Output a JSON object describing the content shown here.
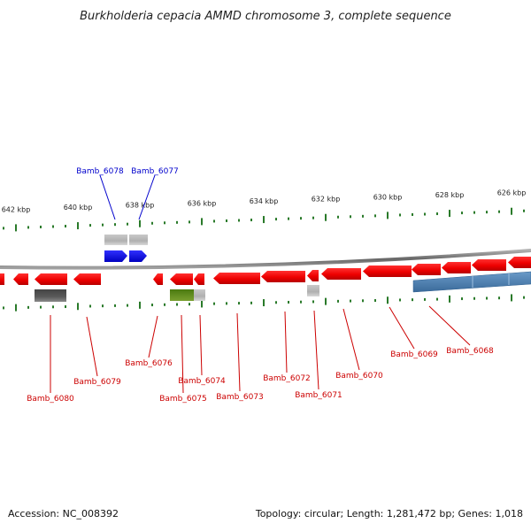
{
  "title": "Burkholderia cepacia AMMD chromosome 3, complete sequence",
  "ruler_ticks": [
    {
      "label": "642 kbp"
    },
    {
      "label": "640 kbp"
    },
    {
      "label": "638 kbp"
    },
    {
      "label": "636 kbp"
    },
    {
      "label": "634 kbp"
    },
    {
      "label": "632 kbp"
    },
    {
      "label": "630 kbp"
    },
    {
      "label": "628 kbp"
    },
    {
      "label": "626 kbp"
    }
  ],
  "genes_top": [
    {
      "name": "Bamb_6078",
      "color": "#0000cc"
    },
    {
      "name": "Bamb_6077",
      "color": "#0000cc"
    }
  ],
  "genes_bottom": [
    {
      "name": "Bamb_6080"
    },
    {
      "name": "Bamb_6079"
    },
    {
      "name": "Bamb_6076"
    },
    {
      "name": "Bamb_6075"
    },
    {
      "name": "Bamb_6074"
    },
    {
      "name": "Bamb_6073"
    },
    {
      "name": "Bamb_6072"
    },
    {
      "name": "Bamb_6071"
    },
    {
      "name": "Bamb_6070"
    },
    {
      "name": "Bamb_6069"
    },
    {
      "name": "Bamb_6068"
    }
  ],
  "colors": {
    "cds_forward": "#0000ee",
    "cds_reverse": "#ee0000",
    "label_forward": "#0000cc",
    "label_reverse": "#cc0000",
    "tick": "#2a7a2a",
    "backbone": "#888888",
    "grey_feature": "#a8a8a8",
    "dark_feature": "#555555",
    "green_feature": "#5a8a1a",
    "blue_region": "#4a7fb0"
  },
  "footer": {
    "accession": "Accession: NC_008392",
    "topology": "Topology: circular; Length: 1,281,472 bp; Genes: 1,018"
  }
}
